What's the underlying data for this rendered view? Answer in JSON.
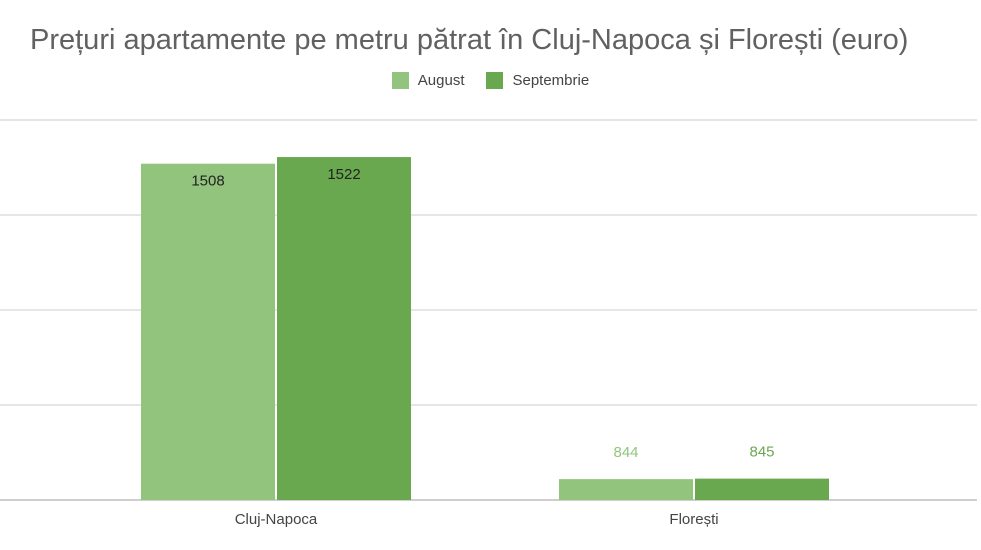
{
  "chart_data": {
    "type": "bar",
    "title": "Prețuri apartamente pe metru pătrat în Cluj-Napoca și Florești (euro)",
    "categories": [
      "Cluj-Napoca",
      "Florești"
    ],
    "series": [
      {
        "name": "August",
        "values": [
          1508,
          844
        ],
        "color": "#93c47d"
      },
      {
        "name": "Septembrie",
        "values": [
          1522,
          845
        ],
        "color": "#6aa84f"
      }
    ],
    "xlabel": "",
    "ylabel": "",
    "ylim": [
      800,
      1600
    ],
    "grid": true,
    "legend_position": "top-center",
    "label_colors": {
      "inside": "#222222",
      "outside": [
        "#93c47d",
        "#6aa84f"
      ]
    }
  }
}
